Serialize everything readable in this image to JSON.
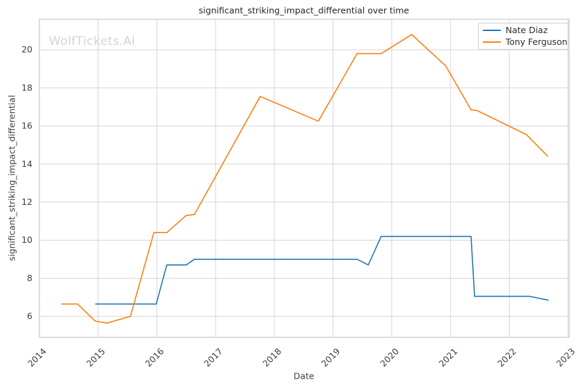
{
  "title": "significant_striking_impact_differential over time",
  "watermark": "WolfTickets.AI",
  "colors": {
    "nate_diaz": "#1f77b4",
    "tony_ferguson": "#ff7f0e",
    "grid": "#d4d4d4",
    "spine": "#c8c8c8",
    "tick_label": "#3d3d3d",
    "title_text": "#262626",
    "watermark_text": "#d4d4d4",
    "legend_border": "#cccccc"
  },
  "chart_data": {
    "type": "line",
    "title": "significant_striking_impact_differential over time",
    "xlabel": "Date",
    "ylabel": "significant_striking_impact_differential",
    "xlim": [
      2014,
      2023.02
    ],
    "ylim": [
      4.9,
      21.6
    ],
    "x_ticks": [
      2014,
      2015,
      2016,
      2017,
      2018,
      2019,
      2020,
      2021,
      2022,
      2023
    ],
    "y_ticks": [
      6,
      8,
      10,
      12,
      14,
      16,
      18,
      20
    ],
    "x_tick_rotation_deg": 45,
    "grid": true,
    "legend_position": "upper right",
    "series": [
      {
        "name": "Nate Diaz",
        "color": "#1f77b4",
        "points": [
          [
            2014.95,
            6.65
          ],
          [
            2015.99,
            6.65
          ],
          [
            2016.17,
            8.7
          ],
          [
            2016.5,
            8.7
          ],
          [
            2016.64,
            9.0
          ],
          [
            2019.41,
            9.0
          ],
          [
            2019.6,
            8.7
          ],
          [
            2019.82,
            10.2
          ],
          [
            2021.35,
            10.2
          ],
          [
            2021.41,
            7.05
          ],
          [
            2022.35,
            7.05
          ],
          [
            2022.67,
            6.85
          ]
        ]
      },
      {
        "name": "Tony Ferguson",
        "color": "#ff7f0e",
        "points": [
          [
            2014.37,
            6.65
          ],
          [
            2014.65,
            6.65
          ],
          [
            2014.95,
            5.75
          ],
          [
            2015.15,
            5.65
          ],
          [
            2015.55,
            6.0
          ],
          [
            2015.95,
            10.4
          ],
          [
            2016.17,
            10.4
          ],
          [
            2016.5,
            11.3
          ],
          [
            2016.64,
            11.35
          ],
          [
            2017.76,
            17.55
          ],
          [
            2018.75,
            16.25
          ],
          [
            2019.41,
            19.8
          ],
          [
            2019.82,
            19.8
          ],
          [
            2020.34,
            20.8
          ],
          [
            2020.92,
            19.15
          ],
          [
            2021.35,
            16.85
          ],
          [
            2021.46,
            16.8
          ],
          [
            2022.29,
            15.55
          ],
          [
            2022.66,
            14.4
          ]
        ]
      }
    ]
  }
}
